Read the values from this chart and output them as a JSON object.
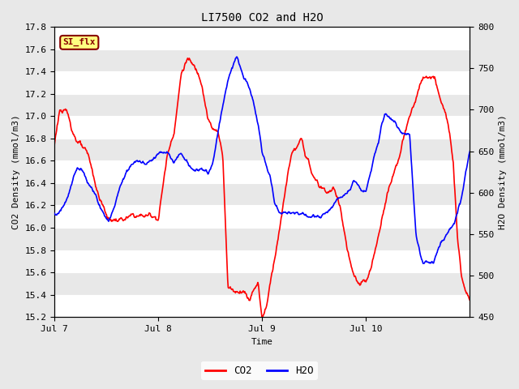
{
  "title": "LI7500 CO2 and H2O",
  "xlabel": "Time",
  "ylabel_left": "CO2 Density (mmol/m3)",
  "ylabel_right": "H2O Density (mmol/m3)",
  "ylim_left": [
    15.2,
    17.8
  ],
  "ylim_right": [
    450,
    800
  ],
  "yticks_left": [
    15.2,
    15.4,
    15.6,
    15.8,
    16.0,
    16.2,
    16.4,
    16.6,
    16.8,
    17.0,
    17.2,
    17.4,
    17.6,
    17.8
  ],
  "yticks_right": [
    450,
    500,
    550,
    600,
    650,
    700,
    750,
    800
  ],
  "xtick_positions": [
    0,
    1,
    2,
    3
  ],
  "xtick_labels": [
    "Jul 7",
    "Jul 8",
    "Jul 9",
    "Jul 10"
  ],
  "legend_co2": "CO2",
  "legend_h2o": "H2O",
  "co2_color": "#FF0000",
  "h2o_color": "#0000FF",
  "plot_bg_color": "#E8E8E8",
  "fig_bg_color": "#E8E8E8",
  "grid_color": "#FFFFFF",
  "annotation_text": "SI_flx",
  "annotation_bg": "#FFFF80",
  "annotation_border": "#880000",
  "annotation_text_color": "#880000",
  "n_points": 800,
  "co2_key_x": [
    0,
    0.05,
    0.12,
    0.18,
    0.25,
    0.32,
    0.42,
    0.52,
    0.62,
    0.72,
    0.82,
    0.92,
    1.0,
    1.08,
    1.15,
    1.22,
    1.28,
    1.35,
    1.42,
    1.48,
    1.52,
    1.57,
    1.62,
    1.67,
    1.75,
    1.82,
    1.88,
    1.92,
    1.96,
    2.0,
    2.05,
    2.1,
    2.18,
    2.28,
    2.38,
    2.48,
    2.55,
    2.62,
    2.68,
    2.75,
    2.82,
    2.88,
    2.92,
    2.95,
    3.0,
    3.05,
    3.12,
    3.2,
    3.3,
    3.38,
    3.45,
    3.52,
    3.58,
    3.65,
    3.72,
    3.78,
    3.84,
    3.88,
    3.92,
    3.96,
    4.0
  ],
  "co2_key_y": [
    16.75,
    17.07,
    17.0,
    16.85,
    16.75,
    16.6,
    16.25,
    16.02,
    16.02,
    16.02,
    16.02,
    16.02,
    16.02,
    16.55,
    16.82,
    17.35,
    17.5,
    17.38,
    17.28,
    17.0,
    16.9,
    16.85,
    16.65,
    15.48,
    15.45,
    15.5,
    15.42,
    15.55,
    15.6,
    15.28,
    15.45,
    15.75,
    16.2,
    16.78,
    16.85,
    16.55,
    16.42,
    16.38,
    16.4,
    16.25,
    15.85,
    15.58,
    15.5,
    15.48,
    15.48,
    15.58,
    15.85,
    16.25,
    16.55,
    16.82,
    17.0,
    17.2,
    17.25,
    17.22,
    17.0,
    16.8,
    16.5,
    15.85,
    15.52,
    15.42,
    15.35
  ],
  "h2o_key_x": [
    0,
    0.05,
    0.08,
    0.12,
    0.18,
    0.22,
    0.28,
    0.32,
    0.38,
    0.42,
    0.48,
    0.52,
    0.58,
    0.62,
    0.68,
    0.72,
    0.78,
    0.82,
    0.88,
    0.92,
    0.96,
    1.0,
    1.05,
    1.1,
    1.15,
    1.18,
    1.22,
    1.28,
    1.35,
    1.42,
    1.48,
    1.52,
    1.55,
    1.58,
    1.62,
    1.65,
    1.68,
    1.72,
    1.75,
    1.78,
    1.82,
    1.85,
    1.88,
    1.92,
    1.96,
    2.0,
    2.05,
    2.08,
    2.12,
    2.18,
    2.25,
    2.32,
    2.38,
    2.45,
    2.52,
    2.58,
    2.65,
    2.72,
    2.78,
    2.85,
    2.88,
    2.92,
    2.95,
    3.0,
    3.05,
    3.08,
    3.12,
    3.15,
    3.18,
    3.22,
    3.28,
    3.35,
    3.42,
    3.48,
    3.52,
    3.55,
    3.58,
    3.62,
    3.65,
    3.68,
    3.72,
    3.78,
    3.85,
    3.92,
    3.96,
    4.0
  ],
  "h2o_key_y": [
    575,
    578,
    582,
    595,
    620,
    632,
    628,
    618,
    605,
    595,
    578,
    568,
    592,
    608,
    628,
    640,
    648,
    652,
    648,
    650,
    658,
    665,
    670,
    668,
    655,
    660,
    668,
    658,
    645,
    648,
    642,
    650,
    668,
    695,
    720,
    740,
    755,
    770,
    780,
    768,
    752,
    745,
    738,
    722,
    698,
    662,
    642,
    632,
    600,
    590,
    592,
    590,
    588,
    585,
    585,
    588,
    590,
    600,
    608,
    618,
    628,
    622,
    618,
    615,
    638,
    655,
    670,
    690,
    700,
    698,
    688,
    672,
    665,
    545,
    518,
    510,
    515,
    512,
    515,
    525,
    540,
    548,
    565,
    595,
    625,
    650
  ]
}
